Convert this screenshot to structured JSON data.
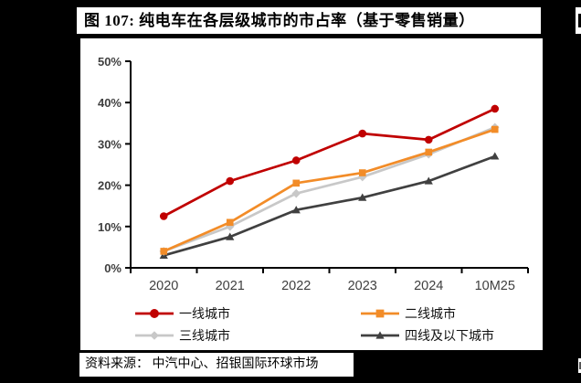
{
  "page": {
    "title": "图 107: 纯电车在各层级城市的市占率（基于零售销量）",
    "source": "资料来源： 中汽中心、招银国际环球市场"
  },
  "chart_data": {
    "type": "line",
    "title": "纯电车在各层级城市的市占率（基于零售销量）",
    "categories": [
      "2020",
      "2021",
      "2022",
      "2023",
      "2024",
      "10M25"
    ],
    "series": [
      {
        "name": "一线城市",
        "color": "#C00000",
        "marker": "circle",
        "values": [
          12.5,
          21,
          26,
          32.5,
          31,
          38.5
        ]
      },
      {
        "name": "二线城市",
        "color": "#F28C28",
        "marker": "square",
        "values": [
          4,
          11,
          20.5,
          23,
          28,
          33.5
        ]
      },
      {
        "name": "三线城市",
        "color": "#C8C8C8",
        "marker": "diamond",
        "values": [
          4,
          10,
          18,
          22,
          27.5,
          34
        ]
      },
      {
        "name": "四线及以下城市",
        "color": "#404040",
        "marker": "triangle",
        "values": [
          3,
          7.5,
          14,
          17,
          21,
          27
        ]
      }
    ],
    "ylim": [
      0,
      50
    ],
    "y_tick_step": 10,
    "y_tick_labels": [
      "0%",
      "10%",
      "20%",
      "30%",
      "40%",
      "50%"
    ],
    "xlabel": "",
    "ylabel": "",
    "grid": false,
    "legend_position": "bottom",
    "axis_color": "#000000",
    "tick_label_color": "#3f3f3f"
  }
}
